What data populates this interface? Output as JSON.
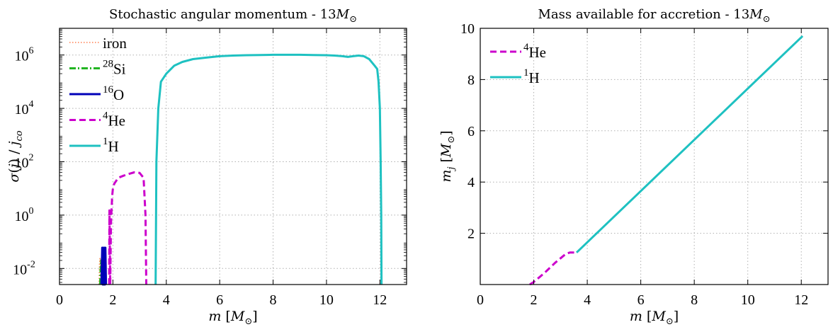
{
  "chart_data": [
    {
      "type": "line",
      "title": "Stochastic angular momentum - 13",
      "title_unit": "M",
      "title_unit_sub": "⊙",
      "xlabel": "m",
      "xlabel_unit": "M",
      "xlabel_unit_sub": "⊙",
      "ylabel": "σ(j) / j",
      "ylabel_sub": "co",
      "y_scale": "log",
      "xlim": [
        0,
        13
      ],
      "ylim": [
        0.0025,
        10000000
      ],
      "grid": true,
      "legend_position": "top-left",
      "x_ticks": [
        0,
        2,
        4,
        6,
        8,
        10,
        12
      ],
      "x_tick_labels": [
        "0",
        "2",
        "4",
        "6",
        "8",
        "10",
        "12"
      ],
      "y_ticks": [
        0.01,
        1,
        100,
        10000,
        1000000
      ],
      "y_tick_labels": [
        {
          "base": "10",
          "exp": "-2"
        },
        {
          "base": "10",
          "exp": "0"
        },
        {
          "base": "10",
          "exp": "2"
        },
        {
          "base": "10",
          "exp": "4"
        },
        {
          "base": "10",
          "exp": "6"
        }
      ],
      "series": [
        {
          "name": "iron",
          "sup": "",
          "color": "#ff7f50",
          "style": "dotted",
          "x": [
            1.48,
            1.5,
            1.52,
            1.54,
            1.55
          ],
          "y": [
            0.0025,
            0.015,
            0.025,
            0.012,
            0.0025
          ]
        },
        {
          "name": "Si",
          "sup": "28",
          "color": "#22b522",
          "style": "dashdot",
          "x": [
            1.52,
            1.54,
            1.56,
            1.58,
            1.6
          ],
          "y": [
            0.0025,
            0.008,
            0.02,
            0.01,
            0.0025
          ]
        },
        {
          "name": "O",
          "sup": "16",
          "color": "#0000b8",
          "style": "solid",
          "x": [
            1.57,
            1.6,
            1.62,
            1.64,
            1.66,
            1.68,
            1.7,
            1.72,
            1.74
          ],
          "y": [
            0.0025,
            0.06,
            0.0025,
            0.06,
            0.0025,
            0.06,
            0.0025,
            0.06,
            0.0025
          ]
        },
        {
          "name": "He",
          "sup": "4",
          "color": "#cc00cc",
          "style": "dashed",
          "x": [
            1.86,
            1.87,
            1.9,
            1.93,
            1.97,
            2.0,
            2.05,
            2.2,
            2.4,
            2.6,
            2.8,
            3.0,
            3.15,
            3.22,
            3.25
          ],
          "y": [
            0.0025,
            1.5,
            0.0025,
            0.5,
            5,
            10,
            15,
            25,
            30,
            35,
            40,
            38,
            25,
            1,
            0.0025
          ]
        },
        {
          "name": "H",
          "sup": "1",
          "color": "#1ec1c1",
          "style": "solid",
          "x": [
            3.6,
            3.63,
            3.7,
            3.8,
            4.0,
            4.3,
            4.6,
            5.0,
            5.5,
            6.0,
            6.5,
            7.0,
            7.5,
            8.0,
            8.5,
            9.0,
            9.5,
            10.0,
            10.3,
            10.6,
            10.8,
            11.0,
            11.2,
            11.4,
            11.6,
            11.8,
            11.9,
            11.95,
            12.0,
            12.03,
            12.05,
            12.06
          ],
          "y": [
            0.0025,
            100,
            10000,
            100000,
            200000,
            400000,
            550000,
            700000,
            800000,
            900000,
            950000,
            980000,
            1000000,
            1020000,
            1020000,
            1020000,
            1000000,
            980000,
            950000,
            900000,
            850000,
            900000,
            950000,
            900000,
            700000,
            400000,
            300000,
            100000,
            10000,
            100,
            1,
            0.0025
          ]
        }
      ]
    },
    {
      "type": "line",
      "title": "Mass available for accretion - 13",
      "title_unit": "M",
      "title_unit_sub": "⊙",
      "xlabel": "m",
      "xlabel_unit": "M",
      "xlabel_unit_sub": "⊙",
      "ylabel": "m",
      "ylabel_sub": "j",
      "ylabel_unit": "M",
      "ylabel_unit_sub": "⊙",
      "y_scale": "linear",
      "xlim": [
        0,
        13
      ],
      "ylim": [
        0,
        10
      ],
      "grid": true,
      "legend_position": "top-left",
      "x_ticks": [
        0,
        2,
        4,
        6,
        8,
        10,
        12
      ],
      "x_tick_labels": [
        "0",
        "2",
        "4",
        "6",
        "8",
        "10",
        "12"
      ],
      "y_ticks": [
        2,
        4,
        6,
        8,
        10
      ],
      "y_tick_labels": [
        "2",
        "4",
        "6",
        "8",
        "10"
      ],
      "series": [
        {
          "name": "He",
          "sup": "4",
          "color": "#cc00cc",
          "style": "dashed",
          "x": [
            1.85,
            2.0,
            2.4,
            2.8,
            3.2,
            3.35,
            3.5,
            3.6
          ],
          "y": [
            0.0,
            0.1,
            0.45,
            0.85,
            1.2,
            1.25,
            1.25,
            1.25
          ]
        },
        {
          "name": "H",
          "sup": "1",
          "color": "#1ec1c1",
          "style": "solid",
          "x": [
            3.6,
            12.05
          ],
          "y": [
            1.25,
            9.7
          ]
        }
      ]
    }
  ]
}
